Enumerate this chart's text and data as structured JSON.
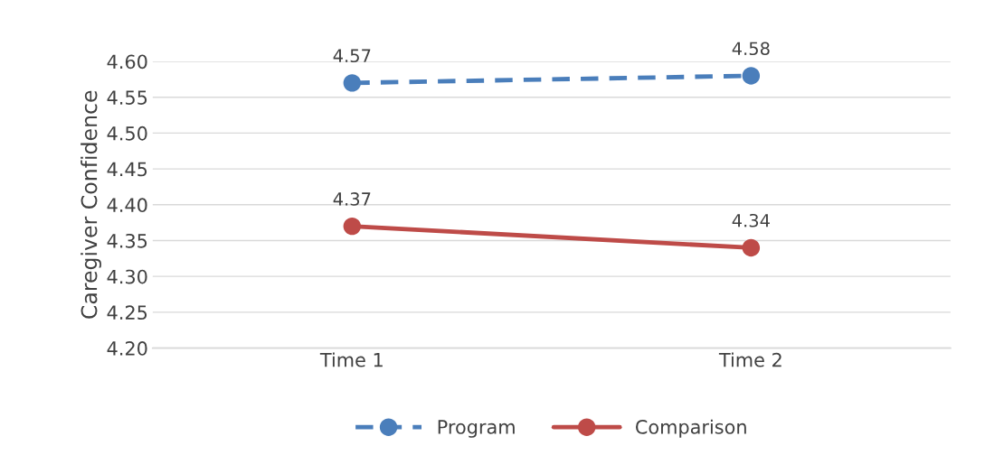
{
  "chart_data": {
    "type": "line",
    "ylabel": "Caregiver Confidence",
    "categories": [
      "Time 1",
      "Time 2"
    ],
    "series": [
      {
        "name": "Program",
        "color": "#4a7ebb",
        "values": [
          4.57,
          4.58
        ],
        "line_style": "dashed"
      },
      {
        "name": "Comparison",
        "color": "#be4b48",
        "values": [
          4.37,
          4.34
        ],
        "line_style": "solid"
      }
    ],
    "ylim": [
      4.2,
      4.6
    ],
    "yticks": [
      {
        "value": 4.2,
        "label": "4.20"
      },
      {
        "value": 4.25,
        "label": "4.25"
      },
      {
        "value": 4.3,
        "label": "4.30"
      },
      {
        "value": 4.35,
        "label": "4.35"
      },
      {
        "value": 4.4,
        "label": "4.40"
      },
      {
        "value": 4.45,
        "label": "4.45"
      },
      {
        "value": 4.5,
        "label": "4.50"
      },
      {
        "value": 4.55,
        "label": "4.55"
      },
      {
        "value": 4.6,
        "label": "4.60"
      }
    ],
    "grid": "y",
    "legend": "bottom",
    "marker": "circle",
    "data_labels": true
  }
}
